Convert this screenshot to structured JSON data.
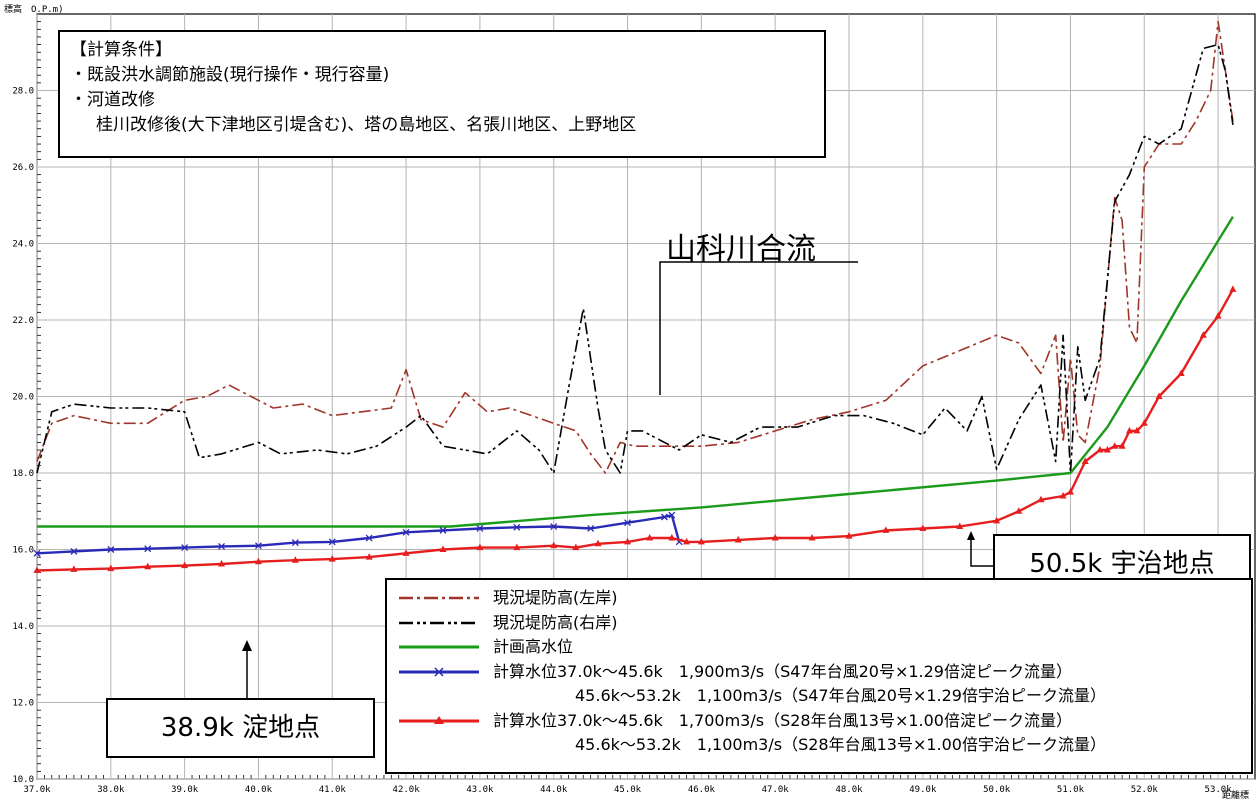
{
  "header": {
    "ylabel": "標高　O.P.m)",
    "xlabel": "距離標"
  },
  "conditions": {
    "title": "【計算条件】",
    "line1": "・既設洪水調節施設(現行操作・現行容量)",
    "line2": "・河道改修",
    "line3": "桂川改修後(大下津地区引堤含む)、塔の島地区、名張川地区、上野地区"
  },
  "callouts": {
    "yamashina": "山科川合流",
    "uji": "50.5k  宇治地点",
    "yodo": "38.9k  淀地点"
  },
  "legend": {
    "left_bank": "現況堤防高(左岸)",
    "right_bank": "現況堤防高(右岸)",
    "plan": "計画高水位",
    "blue_a": "計算水位37.0k～45.6k　1,900m3/s（S47年台風20号×1.29倍淀ピーク流量）",
    "blue_b": "45.6k～53.2k　1,100m3/s（S47年台風20号×1.29倍宇治ピーク流量）",
    "red_a": "計算水位37.0k～45.6k　1,700m3/s（S28年台風13号×1.00倍淀ピーク流量）",
    "red_b": "45.6k～53.2k　1,100m3/s（S28年台風13号×1.00倍宇治ピーク流量）"
  },
  "chart_data": {
    "type": "line",
    "xlabel": "距離標",
    "ylabel": "標高　O.P.m)",
    "xlim": [
      37.0,
      53.5
    ],
    "ylim": [
      10.0,
      30.0
    ],
    "grid": true,
    "legend_position": "bottom-right",
    "x_ticks": [
      "37.0k",
      "38.0k",
      "39.0k",
      "40.0k",
      "41.0k",
      "42.0k",
      "43.0k",
      "44.0k",
      "45.0k",
      "46.0k",
      "47.0k",
      "48.0k",
      "49.0k",
      "50.0k",
      "51.0k",
      "52.0k",
      "53.0k"
    ],
    "y_ticks": [
      "10.0",
      "12.0",
      "14.0",
      "16.0",
      "18.0",
      "20.0",
      "22.0",
      "24.0",
      "26.0",
      "28.0"
    ],
    "series": [
      {
        "name": "現況堤防高(左岸)",
        "color": "#a0362a",
        "style": "dashdot",
        "x": [
          37.0,
          37.2,
          37.5,
          38.0,
          38.5,
          39.0,
          39.3,
          39.6,
          39.9,
          40.2,
          40.6,
          41.0,
          41.4,
          41.8,
          42.0,
          42.2,
          42.5,
          42.8,
          43.1,
          43.4,
          43.7,
          44.0,
          44.3,
          44.5,
          44.7,
          44.9,
          45.1,
          45.4,
          45.7,
          46.0,
          46.5,
          47.0,
          47.5,
          48.0,
          48.5,
          49.0,
          49.5,
          50.0,
          50.3,
          50.6,
          50.8,
          50.9,
          51.0,
          51.1,
          51.2,
          51.4,
          51.6,
          51.7,
          51.8,
          51.9,
          52.0,
          52.2,
          52.5,
          52.7,
          52.9,
          53.0,
          53.1,
          53.2
        ],
        "y": [
          18.3,
          19.3,
          19.5,
          19.3,
          19.3,
          19.9,
          20.0,
          20.3,
          20.0,
          19.7,
          19.8,
          19.5,
          19.6,
          19.7,
          20.7,
          19.4,
          19.2,
          20.1,
          19.6,
          19.7,
          19.5,
          19.3,
          19.1,
          18.5,
          18.0,
          18.8,
          18.7,
          18.7,
          18.7,
          18.7,
          18.8,
          19.1,
          19.4,
          19.6,
          19.9,
          20.8,
          21.2,
          21.6,
          21.4,
          20.6,
          21.6,
          18.8,
          21.0,
          19.0,
          18.8,
          20.8,
          25.2,
          24.6,
          21.8,
          21.4,
          26.0,
          26.6,
          26.6,
          27.2,
          28.0,
          29.8,
          28.5,
          27.2
        ]
      },
      {
        "name": "現況堤防高(右岸)",
        "color": "#000000",
        "style": "dashdotdot",
        "x": [
          37.0,
          37.2,
          37.5,
          38.0,
          38.5,
          39.0,
          39.2,
          39.5,
          40.0,
          40.3,
          40.8,
          41.2,
          41.6,
          42.0,
          42.2,
          42.5,
          42.8,
          43.1,
          43.5,
          43.8,
          44.0,
          44.2,
          44.4,
          44.5,
          44.6,
          44.7,
          44.9,
          45.0,
          45.2,
          45.5,
          45.7,
          46.0,
          46.4,
          46.8,
          47.0,
          47.3,
          47.8,
          48.2,
          48.6,
          49.0,
          49.3,
          49.6,
          49.8,
          50.0,
          50.3,
          50.6,
          50.8,
          50.9,
          51.0,
          51.1,
          51.2,
          51.4,
          51.6,
          51.8,
          52.0,
          52.2,
          52.5,
          52.8,
          53.0,
          53.1,
          53.2
        ],
        "y": [
          18.0,
          19.6,
          19.8,
          19.7,
          19.7,
          19.6,
          18.4,
          18.5,
          18.8,
          18.5,
          18.6,
          18.5,
          18.7,
          19.2,
          19.5,
          18.7,
          18.6,
          18.5,
          19.1,
          18.6,
          18.0,
          20.2,
          22.3,
          21.0,
          19.7,
          18.6,
          18.0,
          19.1,
          19.1,
          18.8,
          18.6,
          19.0,
          18.8,
          19.2,
          19.2,
          19.2,
          19.5,
          19.5,
          19.3,
          19.0,
          19.7,
          19.1,
          20.0,
          18.1,
          19.4,
          20.3,
          18.3,
          21.6,
          18.0,
          21.3,
          19.9,
          21.0,
          25.1,
          25.8,
          26.8,
          26.6,
          27.0,
          29.1,
          29.2,
          28.5,
          27.1
        ]
      },
      {
        "name": "計画高水位",
        "color": "#1a9b1a",
        "style": "solid",
        "x": [
          37.0,
          42.6,
          44.5,
          46.0,
          48.0,
          50.0,
          51.0,
          51.5,
          52.0,
          52.5,
          53.2
        ],
        "y": [
          16.6,
          16.6,
          16.9,
          17.1,
          17.45,
          17.8,
          18.0,
          19.2,
          20.8,
          22.5,
          24.7
        ]
      },
      {
        "name": "計算水位37.0k～45.6k　1,900m3/s",
        "color": "#2a2ab8",
        "style": "solid",
        "marker": "x",
        "x": [
          37.0,
          37.5,
          38.0,
          38.5,
          39.0,
          39.5,
          40.0,
          40.5,
          41.0,
          41.5,
          42.0,
          42.5,
          43.0,
          43.5,
          44.0,
          44.5,
          45.0,
          45.5,
          45.6,
          45.7
        ],
        "y": [
          15.9,
          15.95,
          16.0,
          16.02,
          16.05,
          16.08,
          16.1,
          16.18,
          16.2,
          16.3,
          16.45,
          16.5,
          16.55,
          16.58,
          16.6,
          16.55,
          16.7,
          16.85,
          16.9,
          16.2
        ]
      },
      {
        "name": "計算水位37.0k～45.6k　1,700m3/s",
        "color": "#e61e1e",
        "style": "solid",
        "marker": "triangle",
        "x": [
          37.0,
          37.5,
          38.0,
          38.5,
          39.0,
          39.5,
          40.0,
          40.5,
          41.0,
          41.5,
          42.0,
          42.5,
          43.0,
          43.5,
          44.0,
          44.3,
          44.6,
          45.0,
          45.3,
          45.6,
          45.8,
          46.0,
          46.5,
          47.0,
          47.5,
          48.0,
          48.5,
          49.0,
          49.5,
          50.0,
          50.3,
          50.6,
          50.9,
          51.0,
          51.2,
          51.4,
          51.5,
          51.6,
          51.7,
          51.8,
          51.9,
          52.0,
          52.2,
          52.5,
          52.8,
          53.0,
          53.2
        ],
        "y": [
          15.45,
          15.48,
          15.5,
          15.55,
          15.58,
          15.62,
          15.68,
          15.72,
          15.75,
          15.8,
          15.9,
          16.0,
          16.05,
          16.05,
          16.1,
          16.05,
          16.15,
          16.2,
          16.3,
          16.3,
          16.2,
          16.2,
          16.25,
          16.3,
          16.3,
          16.35,
          16.5,
          16.55,
          16.6,
          16.75,
          17.0,
          17.3,
          17.4,
          17.5,
          18.3,
          18.6,
          18.6,
          18.7,
          18.7,
          19.1,
          19.1,
          19.3,
          20.0,
          20.6,
          21.6,
          22.1,
          22.8
        ]
      }
    ]
  }
}
